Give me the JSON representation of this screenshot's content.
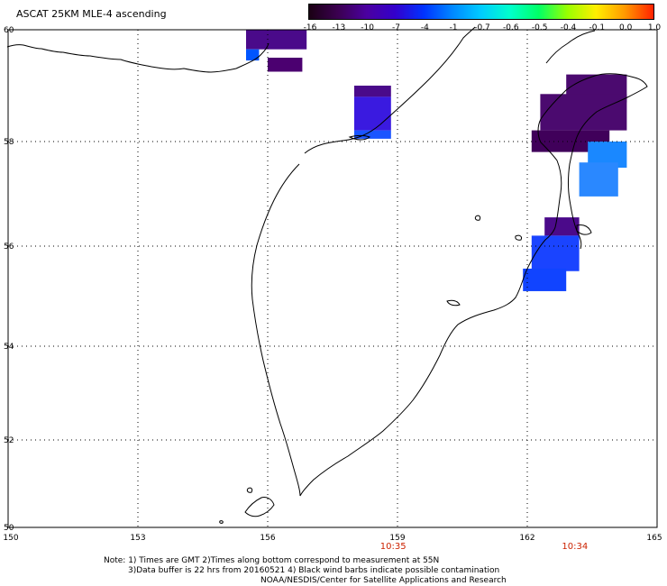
{
  "title": "ASCAT 25KM MLE-4 ascending",
  "colorbar": {
    "labels": [
      "-16",
      "-13",
      "-10",
      "-7",
      "-4",
      "-1",
      "-0.7",
      "-0.6",
      "-0.5",
      "-0.4",
      "-0.1",
      "0.0",
      "1.0"
    ],
    "colors": [
      "#1a0014",
      "#3b0050",
      "#4b00a0",
      "#3300cc",
      "#0033ff",
      "#0088ff",
      "#00ccff",
      "#00ffcc",
      "#00ff66",
      "#99ff00",
      "#ffee00",
      "#ff9900",
      "#ff2200"
    ]
  },
  "axes": {
    "lat_ticks": [
      "60",
      "58",
      "56",
      "54",
      "52",
      "50"
    ],
    "lon_ticks": [
      "150",
      "153",
      "156",
      "159",
      "162",
      "165"
    ],
    "lat_range": [
      50,
      60
    ],
    "lon_range": [
      150,
      165
    ],
    "grid": true
  },
  "times": [
    {
      "label": "10:35",
      "lon": 158.9
    },
    {
      "label": "10:34",
      "lon": 163.1
    }
  ],
  "notes": {
    "line1": "Note: 1) Times are GMT 2)Times along bottom correspond to measurement at 55N",
    "line2": "3)Data buffer is 22 hrs from 20160521 4) Black wind barbs indicate possible contamination",
    "line3": "NOAA/NESDIS/Center for Satellite Applications and Research"
  },
  "swaths": [
    {
      "lon": [
        155.5,
        156.9
      ],
      "lat": [
        59.65,
        60.0
      ],
      "color": "#4a0a8a"
    },
    {
      "lon": [
        155.5,
        155.8
      ],
      "lat": [
        59.45,
        59.65
      ],
      "color": "#0055ff"
    },
    {
      "lon": [
        156.0,
        156.8
      ],
      "lat": [
        59.25,
        59.5
      ],
      "color": "#4b0070"
    },
    {
      "lon": [
        158.0,
        158.85
      ],
      "lat": [
        58.8,
        59.0
      ],
      "color": "#4a0a8a"
    },
    {
      "lon": [
        158.0,
        158.85
      ],
      "lat": [
        58.2,
        58.8
      ],
      "color": "#3a1ae0"
    },
    {
      "lon": [
        158.0,
        158.85
      ],
      "lat": [
        58.05,
        58.2
      ],
      "color": "#1a55ff"
    },
    {
      "lon": [
        162.9,
        164.3
      ],
      "lat": [
        58.7,
        59.2
      ],
      "color": "#4b0a6f"
    },
    {
      "lon": [
        162.3,
        164.3
      ],
      "lat": [
        58.2,
        58.85
      ],
      "color": "#4b0a6f"
    },
    {
      "lon": [
        162.1,
        163.9
      ],
      "lat": [
        57.8,
        58.2
      ],
      "color": "#40005a"
    },
    {
      "lon": [
        163.4,
        164.3
      ],
      "lat": [
        57.5,
        58.0
      ],
      "color": "#1a88ff"
    },
    {
      "lon": [
        163.2,
        164.1
      ],
      "lat": [
        56.95,
        57.6
      ],
      "color": "#2a88ff"
    },
    {
      "lon": [
        162.4,
        163.2
      ],
      "lat": [
        56.2,
        56.55
      ],
      "color": "#4b0a8a"
    },
    {
      "lon": [
        162.1,
        163.2
      ],
      "lat": [
        55.5,
        56.2
      ],
      "color": "#1a44ff"
    },
    {
      "lon": [
        161.9,
        162.9
      ],
      "lat": [
        55.1,
        55.55
      ],
      "color": "#1144ff"
    }
  ]
}
